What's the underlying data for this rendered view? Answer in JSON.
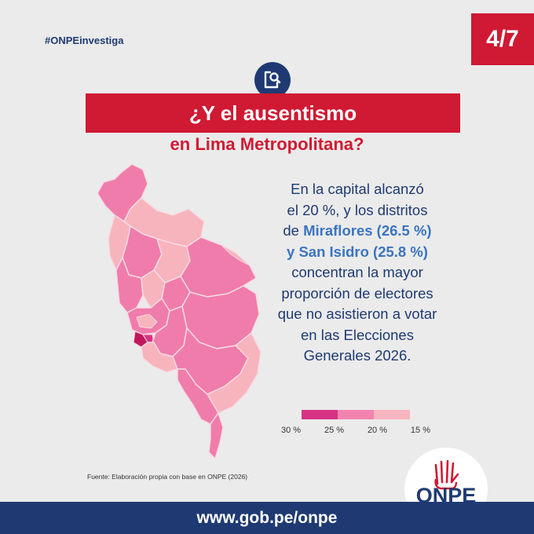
{
  "header": {
    "hashtag": "#ONPEinvestiga",
    "page_indicator": "4/7"
  },
  "icon": {
    "name": "document-search-icon"
  },
  "title": "¿Y el ausentismo",
  "subtitle": "en Lima Metropolitana?",
  "body": {
    "line1": "En la capital alcanzó",
    "line2": "el 20 %, y los distritos",
    "line3_prefix": "de ",
    "line3_highlight": "Miraflores (26.5 %)",
    "line4_highlight": "y San Isidro (25.8 %)",
    "line5": "concentran la mayor",
    "line6": "proporción de electores",
    "line7": "que no asistieron a votar",
    "line8": "en las Elecciones",
    "line9": "Generales 2026."
  },
  "legend": {
    "labels": [
      "30 %",
      "25 %",
      "20 %",
      "15 %"
    ],
    "colors": [
      "#d63384",
      "#f282ae",
      "#f8b4c0"
    ]
  },
  "map_colors": {
    "dark": "#c2185b",
    "mid": "#f07cab",
    "light": "#f8b4bd",
    "border": "#f5dbe3"
  },
  "source": "Fuente: Elaboración propia con base en ONPE (2026)",
  "logo": {
    "text": "ONPE"
  },
  "footer": {
    "url": "www.gob.pe/onpe"
  },
  "colors": {
    "brand_red": "#d01932",
    "brand_navy": "#1f3a73",
    "highlight_blue": "#3a74c0"
  }
}
